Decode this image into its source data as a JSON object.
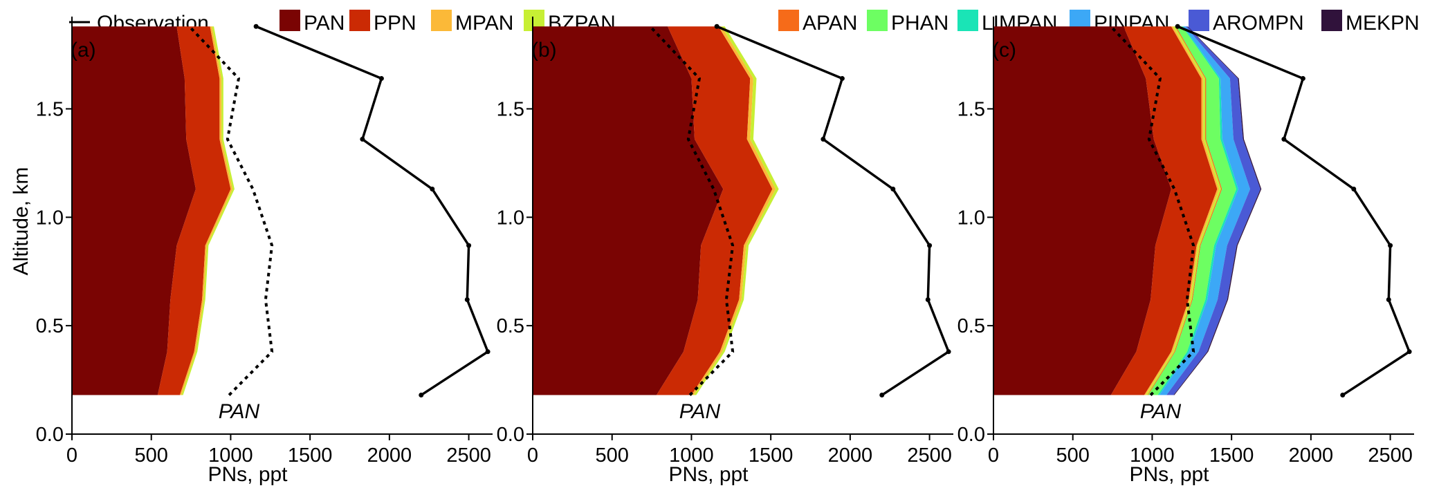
{
  "legend": {
    "observation_label": "Observation",
    "items": [
      {
        "name": "PAN",
        "color": "#7a0403"
      },
      {
        "name": "PPN",
        "color": "#cb2a04"
      },
      {
        "name": "MPAN",
        "color": "#fbb938"
      },
      {
        "name": "BZPAN",
        "color": "#c7ef34"
      },
      {
        "name": "APAN",
        "color": "#f66b19"
      },
      {
        "name": "PHAN",
        "color": "#6dfe62"
      },
      {
        "name": "LIMPAN",
        "color": "#1ae4b6"
      },
      {
        "name": "PINPAN",
        "color": "#3ca8f6"
      },
      {
        "name": "AROMPN",
        "color": "#4a5ad5"
      },
      {
        "name": "MEKPN",
        "color": "#30123b"
      }
    ]
  },
  "chart_data": [
    {
      "type": "area",
      "panel_label": "(a)",
      "annotation": "PAN",
      "xlabel": "PNs, ppt",
      "ylabel": "Altitude, km",
      "xlim": [
        0,
        2650
      ],
      "ylim": [
        0,
        1.9
      ],
      "xticks": [
        "0",
        "500",
        "1000",
        "1500",
        "2000",
        "2500"
      ],
      "yticks": [
        "0.0",
        "0.5",
        "1.0",
        "1.5"
      ],
      "altitude": [
        0.18,
        0.38,
        0.62,
        0.87,
        1.13,
        1.36,
        1.64,
        1.88
      ],
      "series": [
        {
          "name": "PAN",
          "values": [
            540,
            600,
            620,
            660,
            780,
            720,
            710,
            660
          ]
        },
        {
          "name": "PPN",
          "values": [
            140,
            170,
            200,
            180,
            220,
            210,
            220,
            210
          ]
        },
        {
          "name": "MPAN",
          "values": [
            10,
            10,
            10,
            10,
            12,
            12,
            12,
            12
          ]
        },
        {
          "name": "BZPAN",
          "values": [
            10,
            10,
            10,
            10,
            12,
            12,
            12,
            12
          ]
        }
      ],
      "observation": [
        2200,
        2620,
        2490,
        2500,
        2270,
        1830,
        1950,
        1160
      ],
      "model_pan_dotted": [
        990,
        1260,
        1220,
        1260,
        1140,
        980,
        1050,
        740
      ]
    },
    {
      "type": "area",
      "panel_label": "(b)",
      "annotation": "PAN",
      "xlabel": "PNs, ppt",
      "ylabel": "",
      "xlim": [
        0,
        2650
      ],
      "ylim": [
        0,
        1.9
      ],
      "xticks": [
        "0",
        "500",
        "1000",
        "1500",
        "2000",
        "2500"
      ],
      "yticks": [
        "0.0",
        "0.5",
        "1.0",
        "1.5"
      ],
      "altitude": [
        0.18,
        0.38,
        0.62,
        0.87,
        1.13,
        1.36,
        1.64,
        1.88
      ],
      "series": [
        {
          "name": "PAN",
          "values": [
            780,
            950,
            1040,
            1060,
            1200,
            1020,
            1000,
            850
          ]
        },
        {
          "name": "PPN",
          "values": [
            220,
            230,
            260,
            270,
            310,
            330,
            370,
            320
          ]
        },
        {
          "name": "MPAN",
          "values": [
            15,
            15,
            15,
            15,
            20,
            20,
            20,
            20
          ]
        },
        {
          "name": "BZPAN",
          "values": [
            15,
            15,
            15,
            15,
            20,
            20,
            20,
            20
          ]
        }
      ],
      "observation": [
        2200,
        2620,
        2490,
        2500,
        2270,
        1830,
        1950,
        1160
      ],
      "model_pan_dotted": [
        990,
        1260,
        1220,
        1260,
        1140,
        980,
        1050,
        740
      ]
    },
    {
      "type": "area",
      "panel_label": "(c)",
      "annotation": "PAN",
      "xlabel": "PNs, ppt",
      "ylabel": "",
      "xlim": [
        0,
        2650
      ],
      "ylim": [
        0,
        1.9
      ],
      "xticks": [
        "0",
        "500",
        "1000",
        "1500",
        "2000",
        "2500"
      ],
      "yticks": [
        "0.0",
        "0.5",
        "1.0",
        "1.5"
      ],
      "altitude": [
        0.18,
        0.38,
        0.62,
        0.87,
        1.13,
        1.36,
        1.64,
        1.88
      ],
      "series": [
        {
          "name": "PAN",
          "values": [
            740,
            900,
            990,
            1020,
            1120,
            1010,
            960,
            820
          ]
        },
        {
          "name": "PPN",
          "values": [
            210,
            220,
            240,
            260,
            290,
            300,
            350,
            300
          ]
        },
        {
          "name": "MPAN",
          "values": [
            10,
            10,
            10,
            10,
            12,
            12,
            12,
            12
          ]
        },
        {
          "name": "BZPAN",
          "values": [
            10,
            10,
            10,
            10,
            12,
            12,
            12,
            12
          ]
        },
        {
          "name": "APAN",
          "values": [
            5,
            5,
            5,
            5,
            6,
            6,
            6,
            6
          ]
        },
        {
          "name": "PHAN",
          "values": [
            60,
            75,
            80,
            85,
            90,
            90,
            80,
            40
          ]
        },
        {
          "name": "LIMPAN",
          "values": [
            10,
            12,
            12,
            12,
            12,
            12,
            10,
            6
          ]
        },
        {
          "name": "PINPAN",
          "values": [
            45,
            60,
            65,
            70,
            75,
            70,
            60,
            15
          ]
        },
        {
          "name": "AROMPN",
          "values": [
            45,
            55,
            60,
            60,
            65,
            60,
            50,
            10
          ]
        },
        {
          "name": "MEKPN",
          "values": [
            5,
            6,
            6,
            6,
            6,
            6,
            6,
            4
          ]
        }
      ],
      "observation": [
        2200,
        2620,
        2490,
        2500,
        2270,
        1830,
        1950,
        1160
      ],
      "model_pan_dotted": [
        990,
        1260,
        1220,
        1260,
        1140,
        980,
        1050,
        740
      ]
    }
  ]
}
